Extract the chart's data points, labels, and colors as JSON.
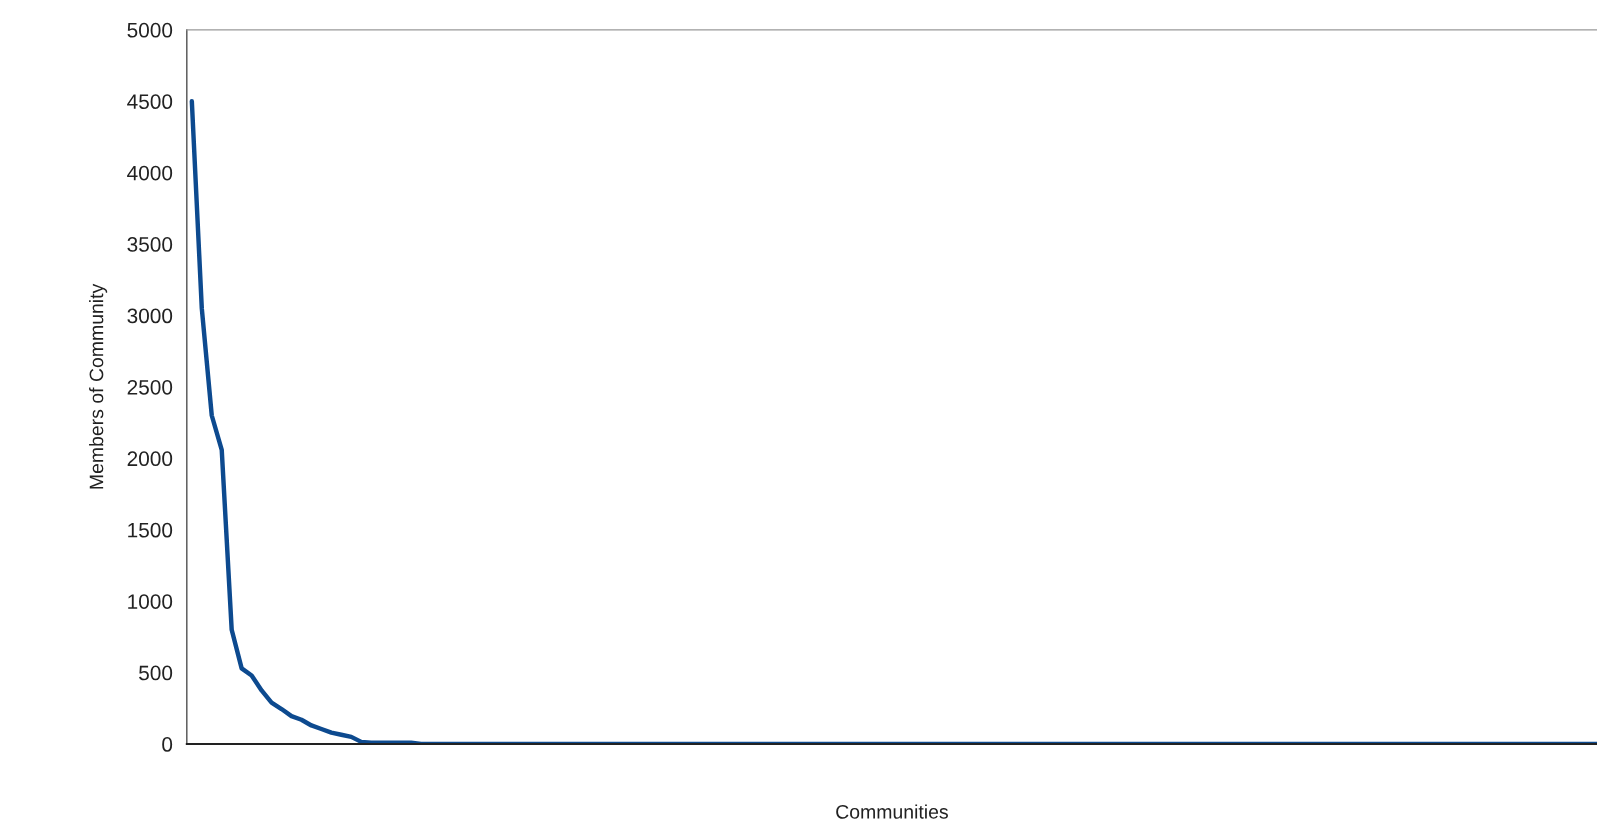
{
  "chart_data": {
    "type": "line",
    "xlabel": "Communities",
    "ylabel": "Members of Community",
    "categories": [
      null,
      null,
      null,
      null,
      null,
      null,
      null,
      null,
      null,
      null,
      null,
      null,
      null,
      null,
      null,
      null,
      null,
      null,
      null,
      null,
      null,
      null,
      null,
      null,
      null,
      null,
      null,
      null,
      null,
      null,
      null,
      null,
      null,
      null,
      null,
      null,
      null,
      null,
      null,
      null,
      null,
      null,
      null,
      null,
      null,
      null,
      null,
      null,
      null,
      null,
      null,
      null,
      null,
      null,
      null,
      null,
      null,
      null,
      null,
      null,
      null,
      null,
      null,
      null,
      null,
      null,
      null,
      null,
      null,
      null,
      null,
      null,
      null,
      null,
      null,
      null,
      null,
      null,
      null,
      null,
      null,
      null,
      null,
      null,
      null,
      null,
      null,
      null,
      null,
      null,
      null,
      null,
      null,
      null,
      null,
      null,
      null,
      null,
      null,
      null,
      null,
      null,
      null,
      null,
      null,
      null,
      null,
      null,
      null,
      null,
      null,
      null,
      null,
      null,
      null,
      null,
      null,
      null,
      null,
      null,
      null,
      null,
      null,
      null,
      null,
      null,
      null,
      null,
      null,
      null,
      null,
      null,
      null,
      null,
      null,
      null,
      null,
      null,
      null,
      null,
      null,
      null
    ],
    "series": [
      {
        "color": "#0d4a8f",
        "values": [
          4500,
          3050,
          2300,
          2060,
          800,
          530,
          480,
          375,
          290,
          245,
          195,
          170,
          130,
          105,
          80,
          65,
          50,
          15,
          10,
          10,
          10,
          10,
          10,
          0,
          0,
          0,
          0,
          0,
          0,
          0,
          0,
          0,
          0,
          0,
          0,
          0,
          0,
          0,
          0,
          0,
          0,
          0,
          0,
          0,
          0,
          0,
          0,
          0,
          0,
          0,
          0,
          0,
          0,
          0,
          0,
          0,
          0,
          0,
          0,
          0,
          0,
          0,
          0,
          0,
          0,
          0,
          0,
          0,
          0,
          0,
          0,
          0,
          0,
          0,
          0,
          0,
          0,
          0,
          0,
          0,
          0,
          0,
          0,
          0,
          0,
          0,
          0,
          0,
          0,
          0,
          0,
          0,
          0,
          0,
          0,
          0,
          0,
          0,
          0,
          0,
          0,
          0,
          0,
          0,
          0,
          0,
          0,
          0,
          0,
          0,
          0,
          0,
          0,
          0,
          0,
          0,
          0,
          0,
          0,
          0,
          0,
          0,
          0,
          0,
          0,
          0,
          0,
          0,
          0,
          0,
          0,
          0,
          0,
          0,
          0,
          0,
          0,
          0,
          0,
          0,
          0,
          0
        ]
      }
    ],
    "ylim": [
      0,
      5000
    ],
    "yticks": [
      0,
      500,
      1000,
      1500,
      2000,
      2500,
      3000,
      3500,
      4000,
      4500,
      5000
    ],
    "grid": false,
    "legend": false
  }
}
